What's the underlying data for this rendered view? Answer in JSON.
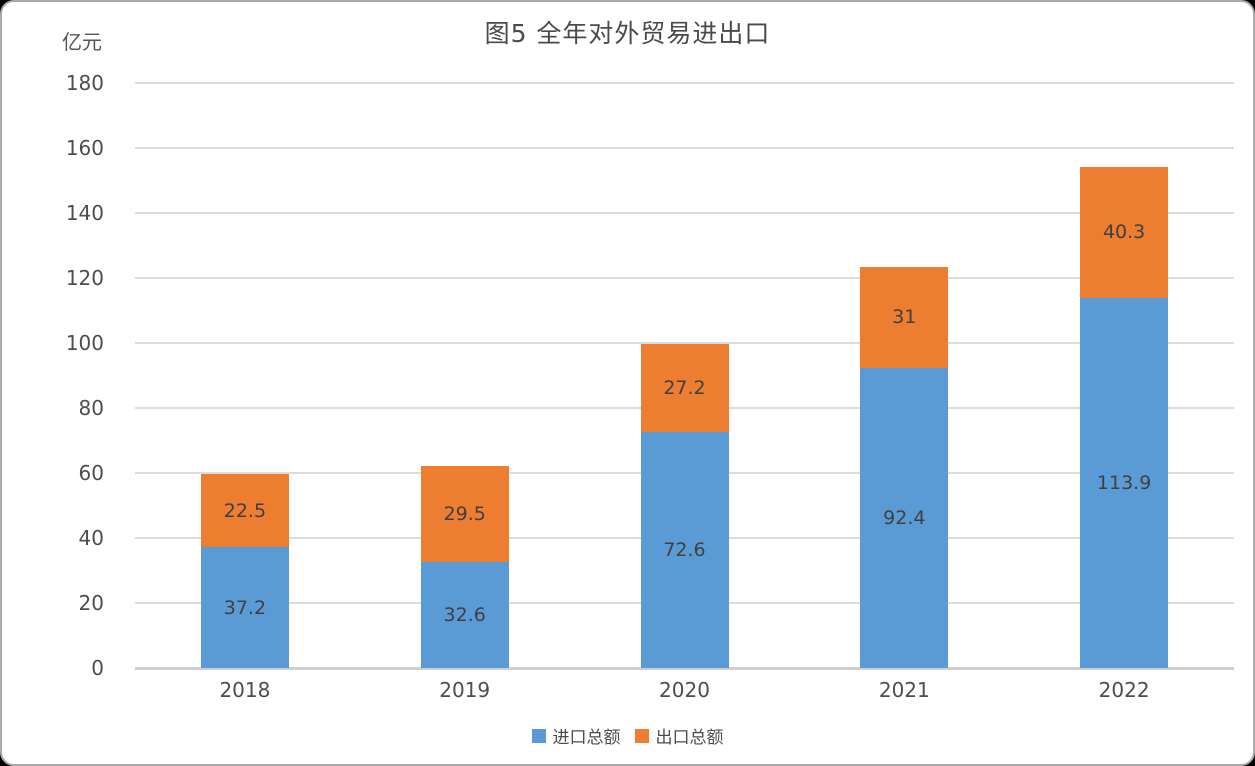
{
  "page": {
    "background_color": "#000000",
    "card_background": "#ffffff",
    "card_border_color": "#ababab"
  },
  "chart_data": {
    "type": "bar",
    "stacked": true,
    "title": "图5  全年对外贸易进出口",
    "unit_label": "亿元",
    "categories": [
      "2018",
      "2019",
      "2020",
      "2021",
      "2022"
    ],
    "series": [
      {
        "name": "进口总额",
        "color": "#5B9BD5",
        "values": [
          37.2,
          32.6,
          72.6,
          92.4,
          113.9
        ]
      },
      {
        "name": "出口总额",
        "color": "#ED7D31",
        "values": [
          22.5,
          29.5,
          27.2,
          31,
          40.3
        ]
      }
    ],
    "ylim": [
      0,
      180
    ],
    "yticks": [
      0,
      20,
      40,
      60,
      80,
      100,
      120,
      140,
      160,
      180
    ],
    "grid": true,
    "legend_position": "bottom",
    "colors": {
      "gridline": "#dcdcdc",
      "baseline": "#cfcfcf",
      "tick_text": "#4d4d4d",
      "data_label": "#404040",
      "title_text": "#4a4a4a"
    }
  }
}
